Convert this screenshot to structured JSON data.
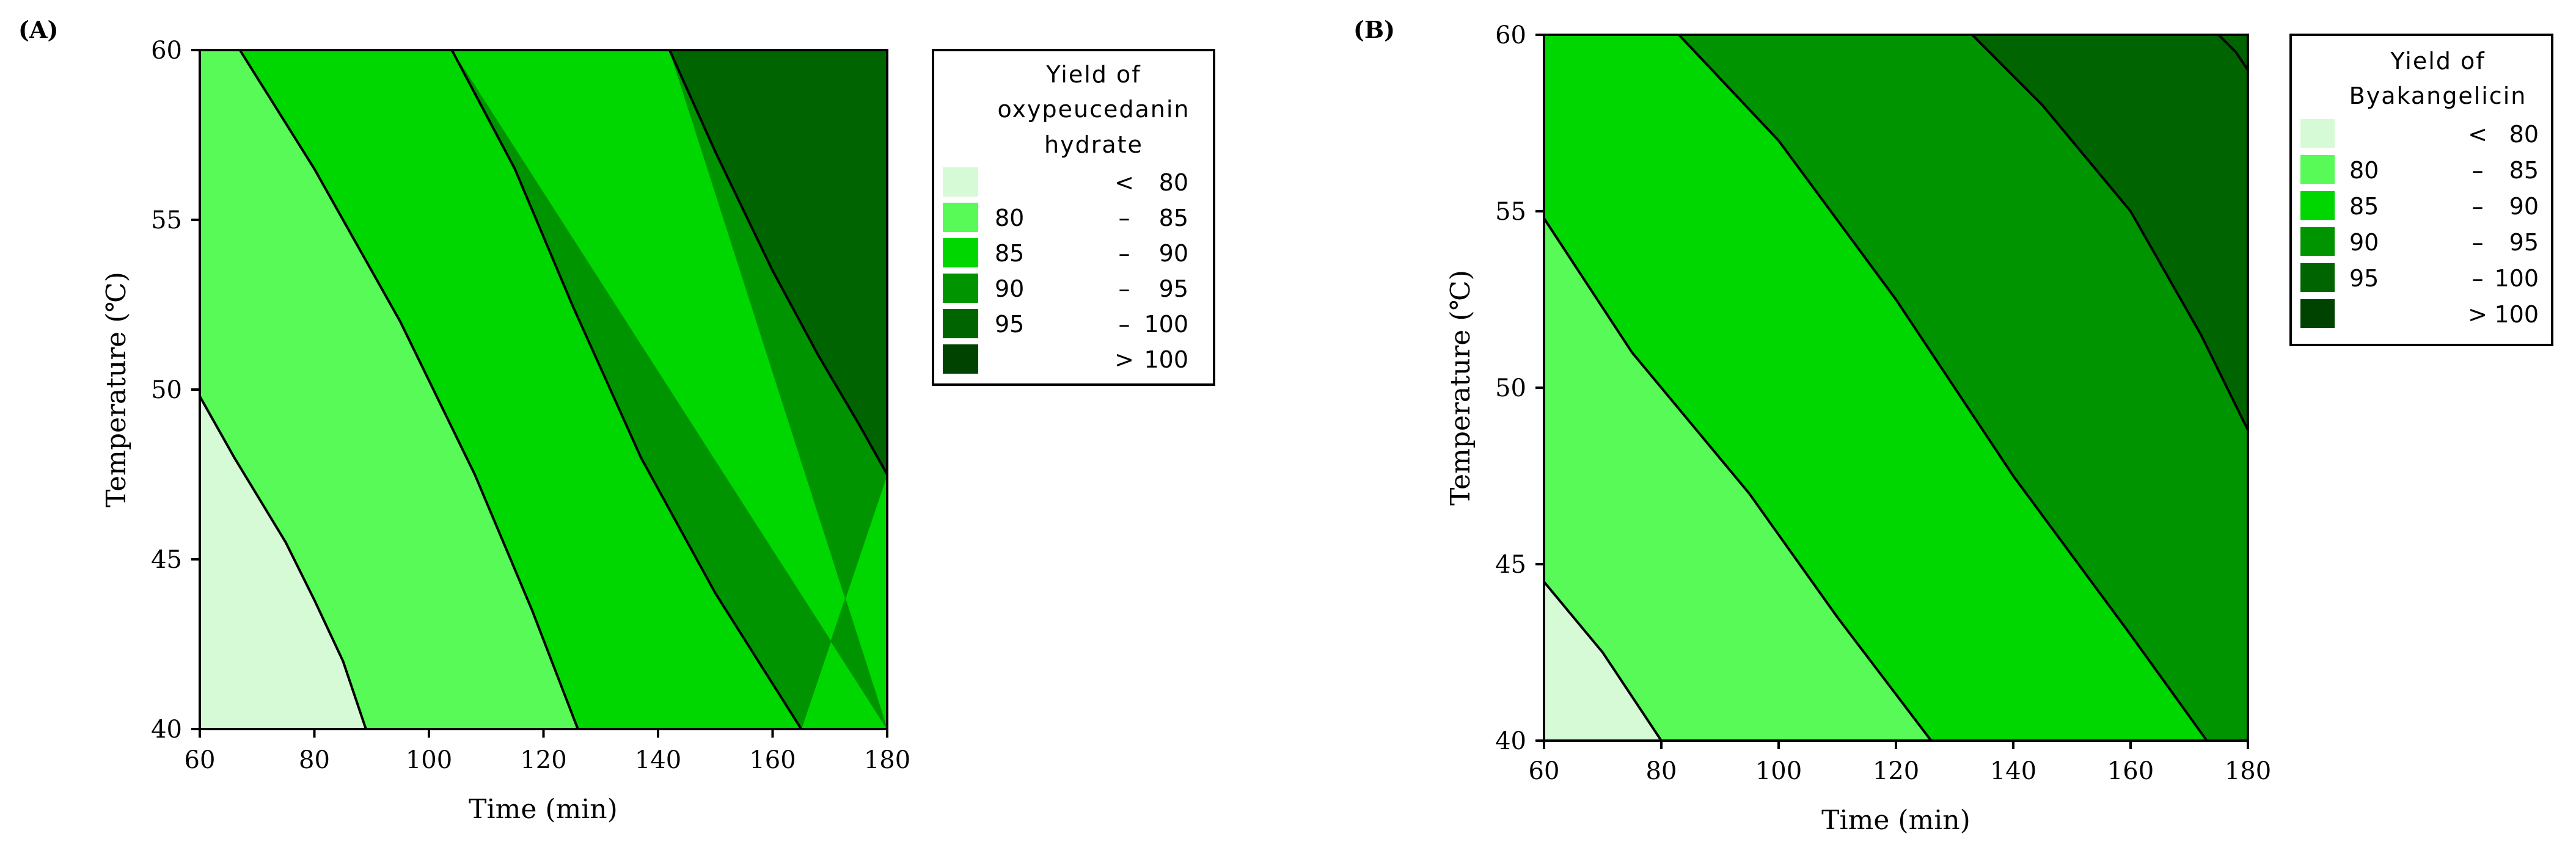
{
  "chart_data": [
    {
      "type": "contour",
      "panel_label": "(A)",
      "xlabel": "Time (min)",
      "ylabel": "Temperature (℃)",
      "xlim": [
        60,
        180
      ],
      "ylim": [
        40,
        60
      ],
      "xticks": [
        "60",
        "80",
        "100",
        "120",
        "140",
        "160",
        "180"
      ],
      "yticks": [
        "40",
        "45",
        "50",
        "55",
        "60"
      ],
      "contour_lines": [
        {
          "level": 80,
          "points": [
            [
              60,
              49.8
            ],
            [
              66,
              48.0
            ],
            [
              75,
              45.5
            ],
            [
              80,
              43.8
            ],
            [
              85,
              42.0
            ],
            [
              89,
              40.0
            ]
          ]
        },
        {
          "level": 85,
          "points": [
            [
              67,
              60.0
            ],
            [
              80,
              56.5
            ],
            [
              95,
              52.0
            ],
            [
              108,
              47.5
            ],
            [
              118,
              43.5
            ],
            [
              126,
              40.0
            ]
          ]
        },
        {
          "level": 90,
          "points": [
            [
              104,
              60.0
            ],
            [
              115,
              56.5
            ],
            [
              125,
              52.5
            ],
            [
              137,
              48.0
            ],
            [
              150,
              44.0
            ],
            [
              165,
              40.0
            ]
          ]
        },
        {
          "level": 95,
          "points": [
            [
              142,
              60.0
            ],
            [
              150,
              57.0
            ],
            [
              160,
              53.5
            ],
            [
              168,
              51.0
            ],
            [
              175,
              49.0
            ],
            [
              180,
              47.5
            ]
          ]
        }
      ],
      "fill_colors": [
        "#d6fad6",
        "#57fa57",
        "#00d600",
        "#009400",
        "#006400",
        "#004200"
      ],
      "legend": {
        "title": [
          "Yield of",
          "oxypeucedanin",
          "hydrate"
        ],
        "entries": [
          {
            "low": "",
            "sep": "<",
            "high": "80"
          },
          {
            "low": "80",
            "sep": "–",
            "high": "85"
          },
          {
            "low": "85",
            "sep": "–",
            "high": "90"
          },
          {
            "low": "90",
            "sep": "–",
            "high": "95"
          },
          {
            "low": "95",
            "sep": "–",
            "high": "100"
          },
          {
            "low": "",
            "sep": ">",
            "high": "100"
          }
        ]
      }
    },
    {
      "type": "contour",
      "panel_label": "(B)",
      "xlabel": "Time (min)",
      "ylabel": "Temperature (℃)",
      "xlim": [
        60,
        180
      ],
      "ylim": [
        40,
        60
      ],
      "xticks": [
        "60",
        "80",
        "100",
        "120",
        "140",
        "160",
        "180"
      ],
      "yticks": [
        "40",
        "45",
        "50",
        "55",
        "60"
      ],
      "contour_lines": [
        {
          "level": 80,
          "points": [
            [
              60,
              44.5
            ],
            [
              70,
              42.5
            ],
            [
              80,
              40.0
            ]
          ]
        },
        {
          "level": 85,
          "points": [
            [
              60,
              54.8
            ],
            [
              75,
              51.0
            ],
            [
              95,
              47.0
            ],
            [
              110,
              43.5
            ],
            [
              126,
              40.0
            ]
          ]
        },
        {
          "level": 90,
          "points": [
            [
              83,
              60.0
            ],
            [
              100,
              57.0
            ],
            [
              120,
              52.5
            ],
            [
              140,
              47.5
            ],
            [
              160,
              43.0
            ],
            [
              173,
              40.0
            ]
          ]
        },
        {
          "level": 95,
          "points": [
            [
              133,
              60.0
            ],
            [
              145,
              58.0
            ],
            [
              160,
              55.0
            ],
            [
              172,
              51.5
            ],
            [
              180,
              48.8
            ]
          ]
        },
        {
          "level": 100,
          "points": [
            [
              175,
              60.0
            ],
            [
              178,
              59.5
            ],
            [
              180,
              59.0
            ]
          ]
        }
      ],
      "fill_colors": [
        "#d6fad6",
        "#57fa57",
        "#00d600",
        "#009400",
        "#006400",
        "#004200"
      ],
      "legend": {
        "title": [
          "Yield of",
          "Byakangelicin"
        ],
        "entries": [
          {
            "low": "",
            "sep": "<",
            "high": "80"
          },
          {
            "low": "80",
            "sep": "–",
            "high": "85"
          },
          {
            "low": "85",
            "sep": "–",
            "high": "90"
          },
          {
            "low": "90",
            "sep": "–",
            "high": "95"
          },
          {
            "low": "95",
            "sep": "–",
            "high": "100"
          },
          {
            "low": "",
            "sep": ">",
            "high": "100"
          }
        ]
      }
    }
  ]
}
